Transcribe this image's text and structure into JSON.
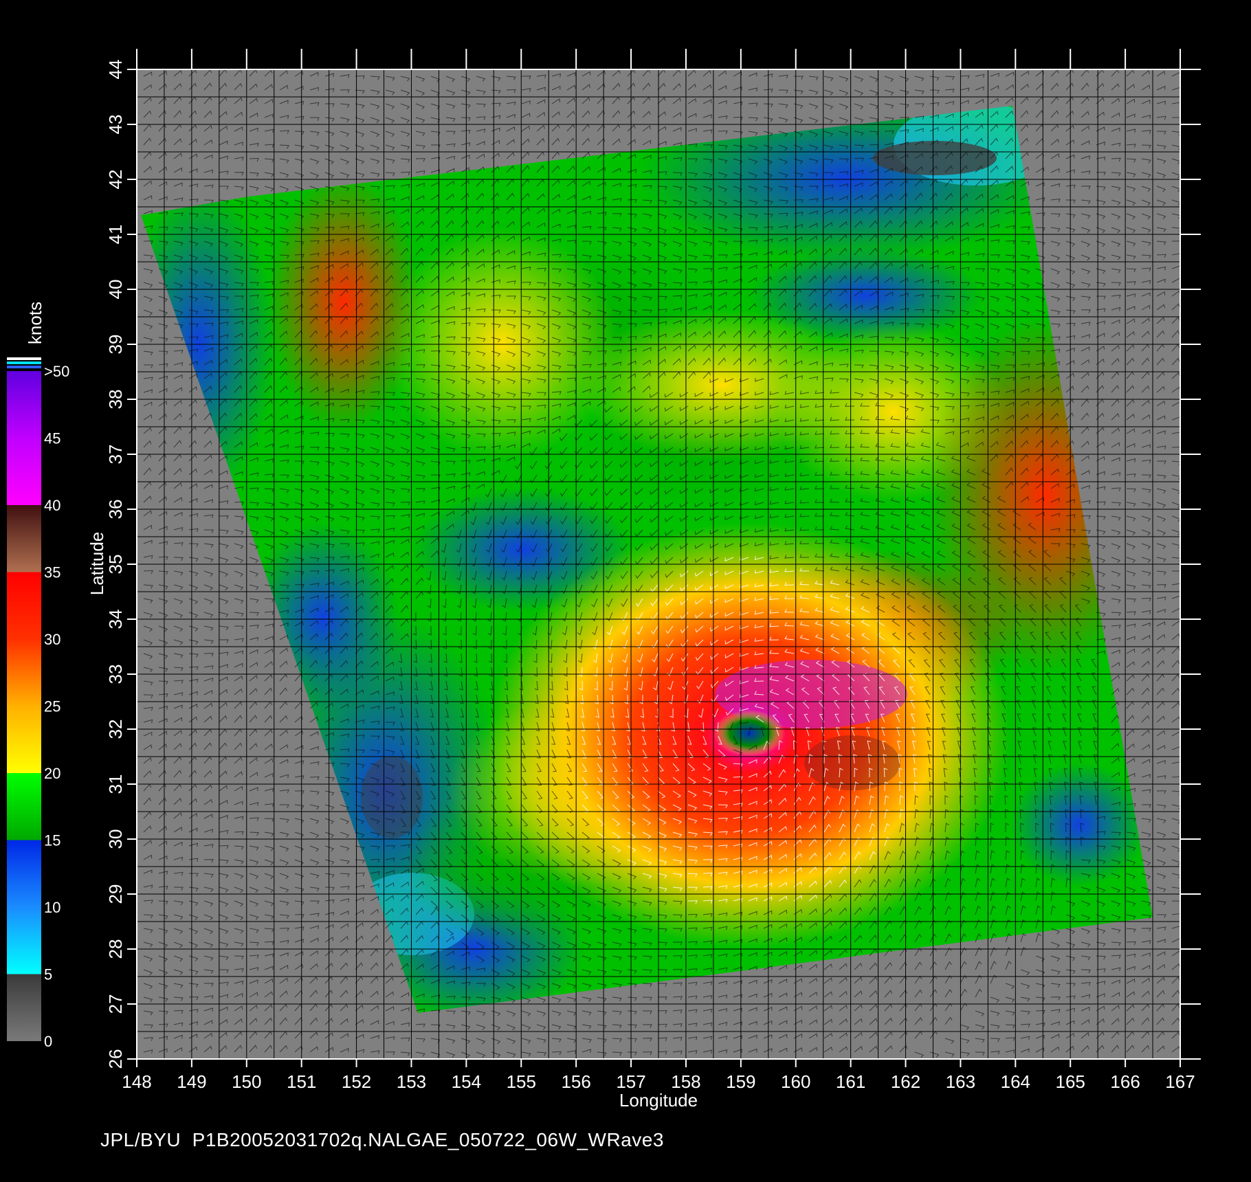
{
  "map": {
    "x_axis_title": "Longitude",
    "y_axis_title": "Latitude",
    "lon_ticks": [
      148,
      149,
      150,
      151,
      152,
      153,
      154,
      155,
      156,
      157,
      158,
      159,
      160,
      161,
      162,
      163,
      164,
      165,
      166,
      167
    ],
    "lat_ticks": [
      26,
      27,
      28,
      29,
      30,
      31,
      32,
      33,
      34,
      35,
      36,
      37,
      38,
      39,
      40,
      41,
      42,
      43,
      44
    ],
    "lon_range": [
      148,
      167
    ],
    "lat_range": [
      26,
      44
    ],
    "background_color": "#808080",
    "grid_color": "#000000",
    "storm_center": {
      "lon": 159.1,
      "lat": 31.9
    }
  },
  "colorbar": {
    "title": "knots",
    "labels": [
      ">50",
      "45",
      "40",
      "35",
      "30",
      "25",
      "20",
      "15",
      "10",
      "5",
      "0"
    ],
    "stops": [
      {
        "value": 0,
        "color": "#7a7a7a"
      },
      {
        "value": 5,
        "color": "#3a3a3a"
      },
      {
        "value": 5,
        "color": "#00ffff"
      },
      {
        "value": 10,
        "color": "#1a8cff"
      },
      {
        "value": 15,
        "color": "#0028e6"
      },
      {
        "value": 15,
        "color": "#00a800"
      },
      {
        "value": 20,
        "color": "#00ff00"
      },
      {
        "value": 20,
        "color": "#ffff00"
      },
      {
        "value": 25,
        "color": "#ffb000"
      },
      {
        "value": 30,
        "color": "#ff3000"
      },
      {
        "value": 35,
        "color": "#ff0000"
      },
      {
        "value": 35,
        "color": "#b07050"
      },
      {
        "value": 40,
        "color": "#401010"
      },
      {
        "value": 40,
        "color": "#ff00ff"
      },
      {
        "value": 45,
        "color": "#c000ff"
      },
      {
        "value": 50,
        "color": "#6000e0"
      }
    ]
  },
  "footer": "JPL/BYU  P1B20052031702q.NALGAE_050722_06W_WRave3"
}
